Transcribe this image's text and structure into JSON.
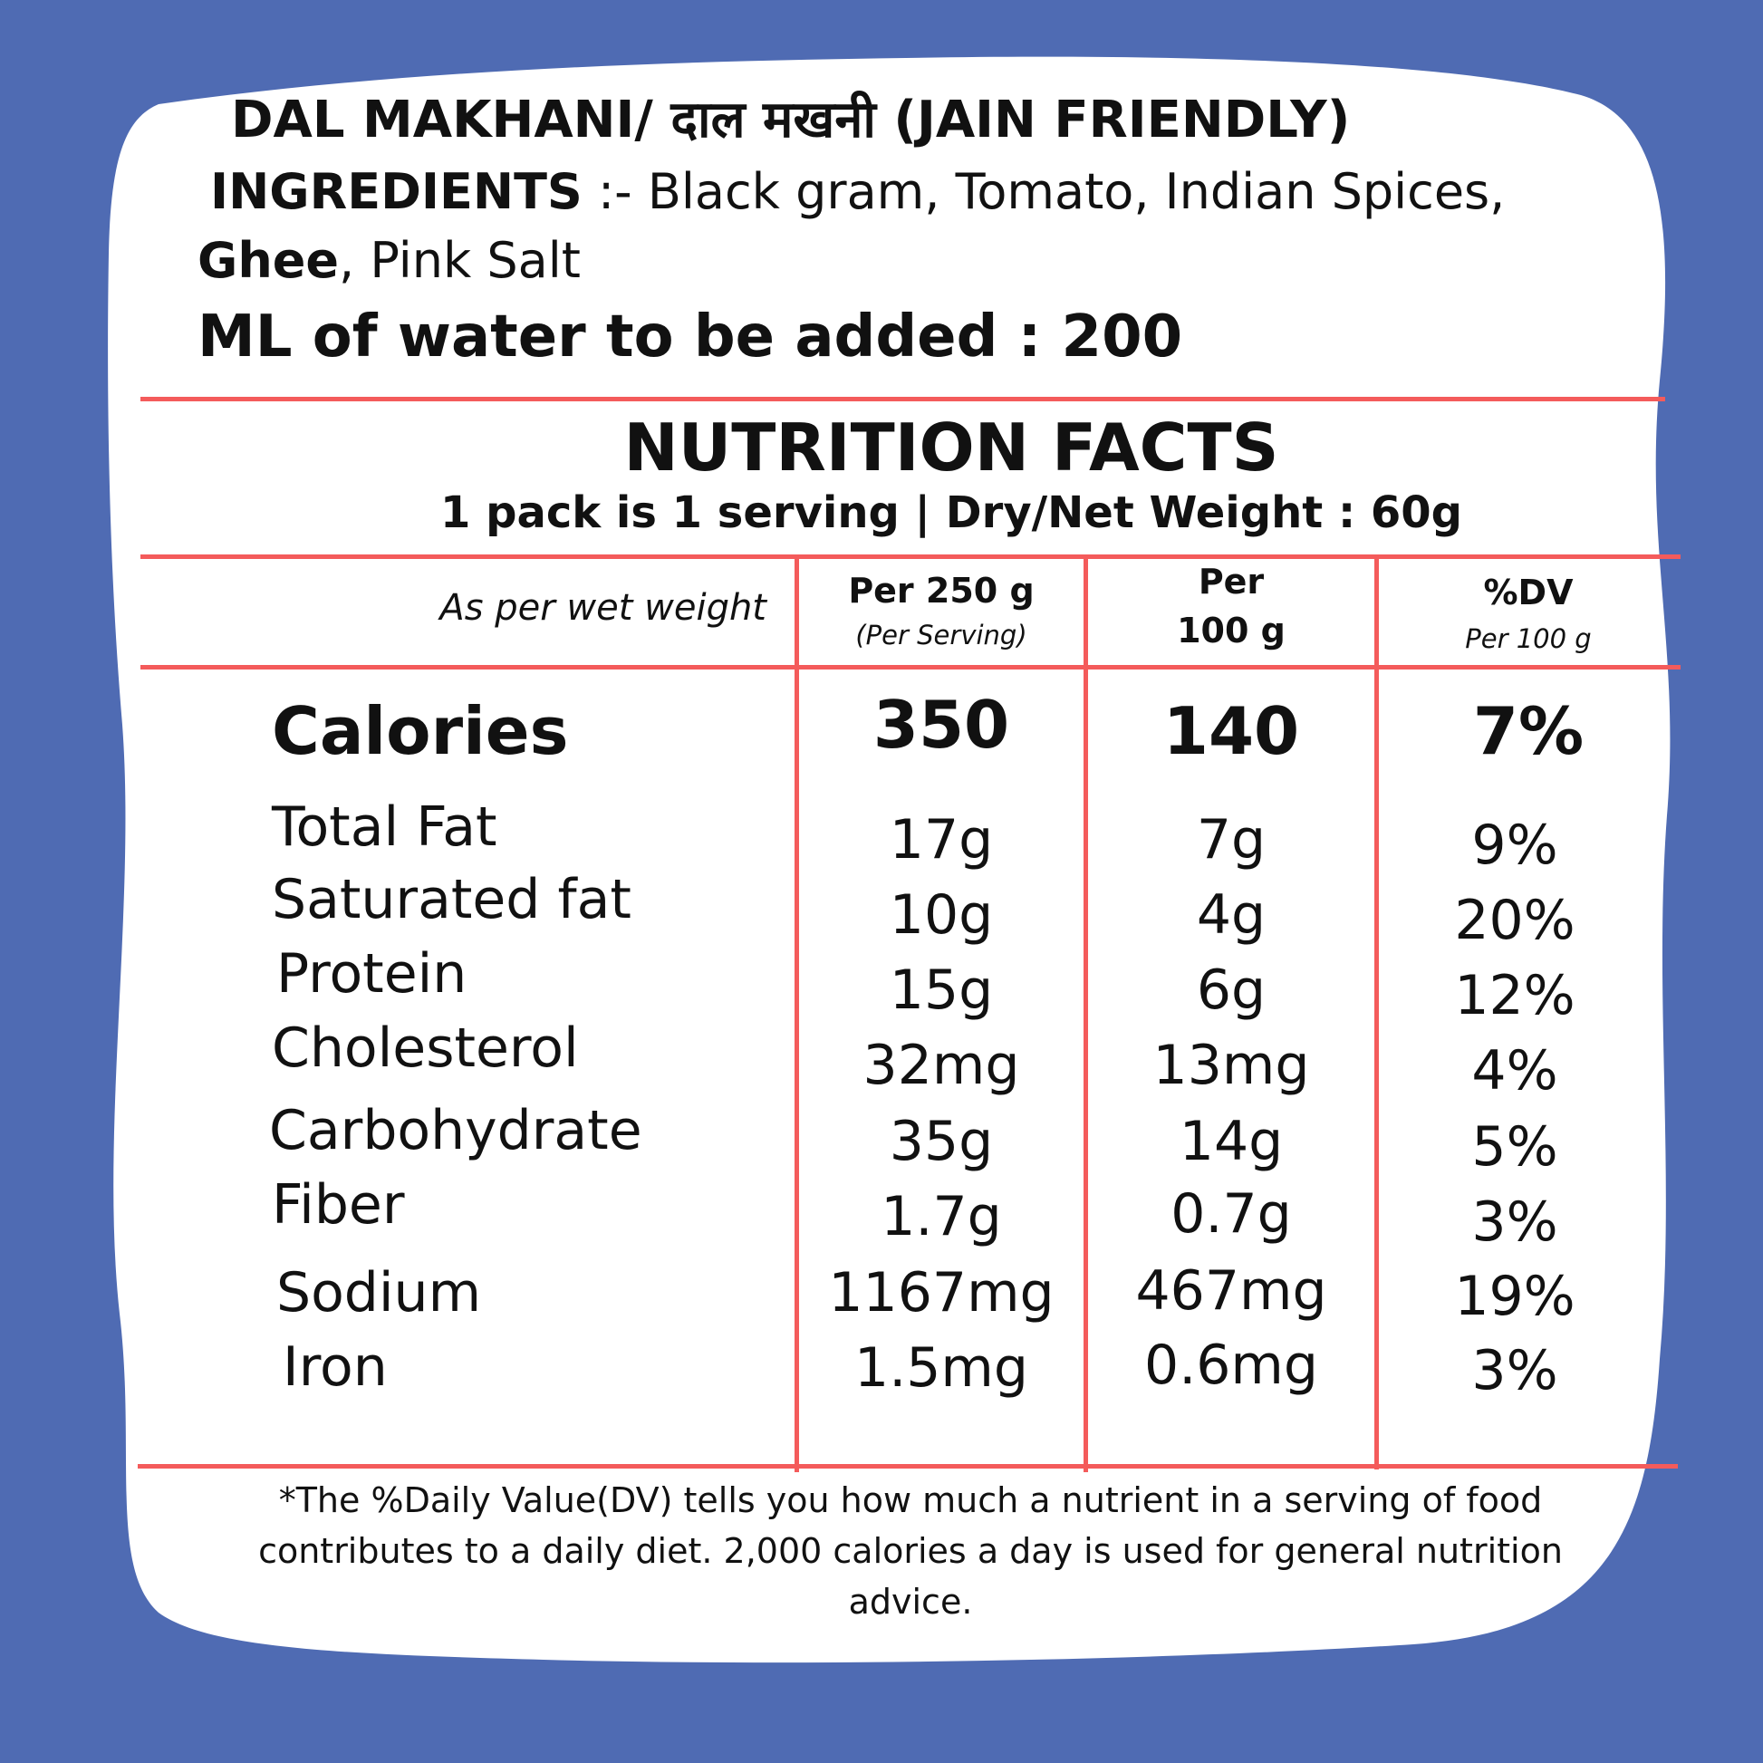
{
  "label": {
    "title": "DAL MAKHANI/ दाल मखनी (JAIN FRIENDLY)",
    "ingredients_heading": "INGREDIENTS",
    "ingredients_line1": " :- Black gram, Tomato, Indian Spices,",
    "ingredients_ghee": "Ghee",
    "ingredients_line2": ",  Pink Salt",
    "water_note": "ML of water to be added : 200"
  },
  "nutrition": {
    "title": "NUTRITION FACTS",
    "serving_info": "1 pack is 1 serving | Dry/Net  Weight : 60g",
    "basis_note": "As per wet weight",
    "columns": [
      {
        "line1": "Per 250 g",
        "line2": "(Per Serving)"
      },
      {
        "line1": "Per",
        "line2": "100 g"
      },
      {
        "line1": "%DV",
        "line2": "Per 100 g"
      }
    ],
    "calories": {
      "label": "Calories",
      "per_serving": "350",
      "per_100g": "140",
      "dv": "7%"
    },
    "rows": [
      {
        "label": "Total Fat",
        "per_serving": "17g",
        "per_100g": "7g",
        "dv": "9%"
      },
      {
        "label": "Saturated fat",
        "per_serving": "10g",
        "per_100g": "4g",
        "dv": "20%"
      },
      {
        "label": "Protein",
        "per_serving": "15g",
        "per_100g": "6g",
        "dv": "12%"
      },
      {
        "label": "Cholesterol",
        "per_serving": "32mg",
        "per_100g": "13mg",
        "dv": "4%"
      },
      {
        "label": "Carbohydrate",
        "per_serving": "35g",
        "per_100g": "14g",
        "dv": "5%"
      },
      {
        "label": "Fiber",
        "per_serving": "1.7g",
        "per_100g": "0.7g",
        "dv": "3%"
      },
      {
        "label": "Sodium",
        "per_serving": "1167mg",
        "per_100g": "467mg",
        "dv": "19%"
      },
      {
        "label": "Iron",
        "per_serving": "1.5mg",
        "per_100g": "0.6mg",
        "dv": "3%"
      }
    ],
    "footnote": "*The %Daily Value(DV) tells you how much a nutrient in a serving of food contributes to a daily diet. 2,000 calories a day is used for general nutrition advice."
  },
  "colors": {
    "background": "#4f6bb3",
    "card": "#ffffff",
    "rule": "#f45b5b"
  }
}
